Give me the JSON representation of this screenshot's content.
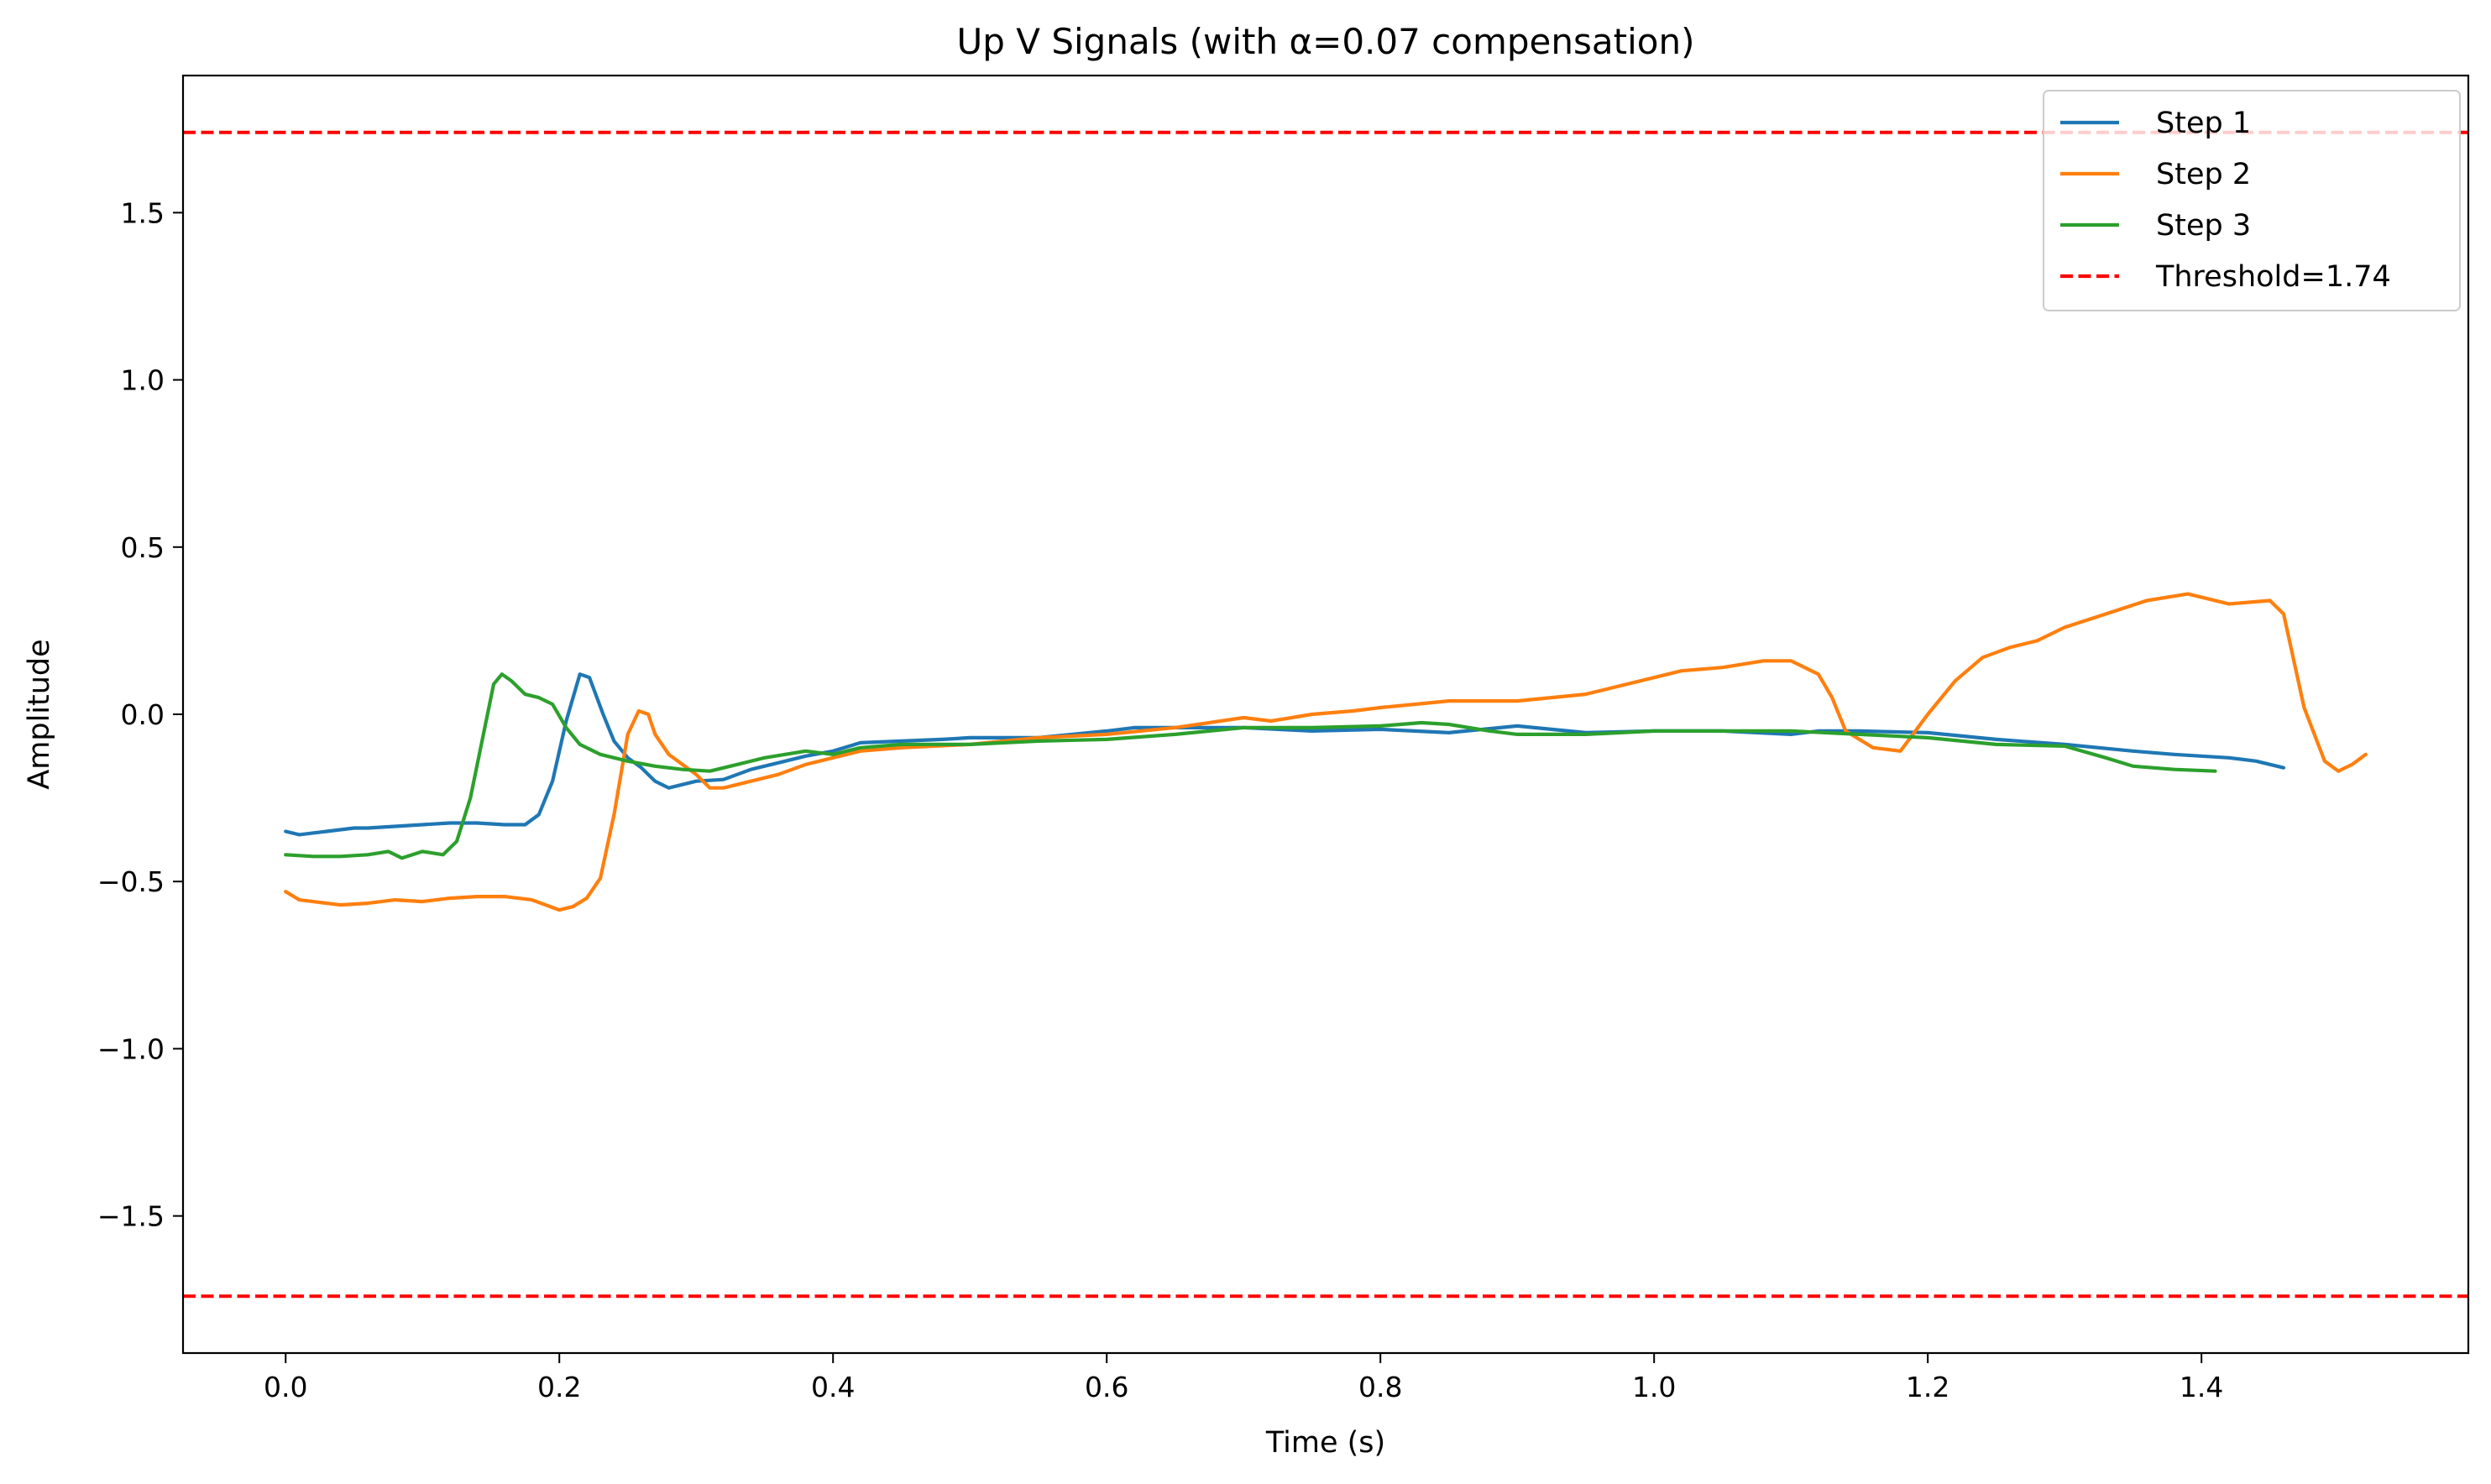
{
  "chart_data": {
    "type": "line",
    "title": "Up V Signals (with α=0.07 compensation)",
    "xlabel": "Time (s)",
    "ylabel": "Amplitude",
    "xlim": [
      -0.075,
      1.595
    ],
    "ylim": [
      -1.91,
      1.91
    ],
    "xticks": [
      0.0,
      0.2,
      0.4,
      0.6,
      0.8,
      1.0,
      1.2,
      1.4
    ],
    "xtick_labels": [
      "0.0",
      "0.2",
      "0.4",
      "0.6",
      "0.8",
      "1.0",
      "1.2",
      "1.4"
    ],
    "yticks": [
      -1.5,
      -1.0,
      -0.5,
      0.0,
      0.5,
      1.0,
      1.5
    ],
    "ytick_labels": [
      "−1.5",
      "−1.0",
      "−0.5",
      "0.0",
      "0.5",
      "1.0",
      "1.5"
    ],
    "grid": false,
    "legend_position": "top-right",
    "series": [
      {
        "name": "Step 1",
        "color": "#1f77b4",
        "points": [
          [
            0.0,
            -0.35
          ],
          [
            0.01,
            -0.36
          ],
          [
            0.02,
            -0.355
          ],
          [
            0.03,
            -0.35
          ],
          [
            0.04,
            -0.345
          ],
          [
            0.05,
            -0.34
          ],
          [
            0.06,
            -0.34
          ],
          [
            0.08,
            -0.335
          ],
          [
            0.1,
            -0.33
          ],
          [
            0.12,
            -0.325
          ],
          [
            0.14,
            -0.325
          ],
          [
            0.16,
            -0.33
          ],
          [
            0.175,
            -0.33
          ],
          [
            0.185,
            -0.3
          ],
          [
            0.195,
            -0.2
          ],
          [
            0.205,
            -0.02
          ],
          [
            0.215,
            0.12
          ],
          [
            0.222,
            0.11
          ],
          [
            0.232,
            0.0
          ],
          [
            0.24,
            -0.08
          ],
          [
            0.25,
            -0.13
          ],
          [
            0.26,
            -0.16
          ],
          [
            0.27,
            -0.2
          ],
          [
            0.28,
            -0.22
          ],
          [
            0.3,
            -0.2
          ],
          [
            0.32,
            -0.195
          ],
          [
            0.34,
            -0.165
          ],
          [
            0.36,
            -0.145
          ],
          [
            0.38,
            -0.125
          ],
          [
            0.4,
            -0.11
          ],
          [
            0.42,
            -0.085
          ],
          [
            0.45,
            -0.08
          ],
          [
            0.48,
            -0.075
          ],
          [
            0.5,
            -0.07
          ],
          [
            0.55,
            -0.07
          ],
          [
            0.6,
            -0.05
          ],
          [
            0.62,
            -0.04
          ],
          [
            0.65,
            -0.04
          ],
          [
            0.7,
            -0.04
          ],
          [
            0.75,
            -0.05
          ],
          [
            0.8,
            -0.045
          ],
          [
            0.85,
            -0.055
          ],
          [
            0.9,
            -0.035
          ],
          [
            0.95,
            -0.055
          ],
          [
            1.0,
            -0.05
          ],
          [
            1.05,
            -0.05
          ],
          [
            1.1,
            -0.06
          ],
          [
            1.12,
            -0.05
          ],
          [
            1.15,
            -0.05
          ],
          [
            1.2,
            -0.055
          ],
          [
            1.25,
            -0.075
          ],
          [
            1.3,
            -0.09
          ],
          [
            1.35,
            -0.11
          ],
          [
            1.38,
            -0.12
          ],
          [
            1.4,
            -0.125
          ],
          [
            1.42,
            -0.13
          ],
          [
            1.44,
            -0.14
          ],
          [
            1.46,
            -0.16
          ]
        ]
      },
      {
        "name": "Step 2",
        "color": "#ff7f0e",
        "points": [
          [
            0.0,
            -0.53
          ],
          [
            0.01,
            -0.555
          ],
          [
            0.02,
            -0.56
          ],
          [
            0.04,
            -0.57
          ],
          [
            0.06,
            -0.565
          ],
          [
            0.08,
            -0.555
          ],
          [
            0.1,
            -0.56
          ],
          [
            0.12,
            -0.55
          ],
          [
            0.14,
            -0.545
          ],
          [
            0.16,
            -0.545
          ],
          [
            0.18,
            -0.555
          ],
          [
            0.2,
            -0.585
          ],
          [
            0.21,
            -0.575
          ],
          [
            0.22,
            -0.55
          ],
          [
            0.23,
            -0.49
          ],
          [
            0.24,
            -0.3
          ],
          [
            0.25,
            -0.06
          ],
          [
            0.258,
            0.01
          ],
          [
            0.265,
            0.0
          ],
          [
            0.27,
            -0.06
          ],
          [
            0.28,
            -0.12
          ],
          [
            0.29,
            -0.15
          ],
          [
            0.3,
            -0.18
          ],
          [
            0.31,
            -0.22
          ],
          [
            0.32,
            -0.22
          ],
          [
            0.34,
            -0.2
          ],
          [
            0.36,
            -0.18
          ],
          [
            0.38,
            -0.15
          ],
          [
            0.4,
            -0.13
          ],
          [
            0.42,
            -0.11
          ],
          [
            0.45,
            -0.1
          ],
          [
            0.5,
            -0.09
          ],
          [
            0.55,
            -0.07
          ],
          [
            0.6,
            -0.06
          ],
          [
            0.65,
            -0.04
          ],
          [
            0.7,
            -0.01
          ],
          [
            0.72,
            -0.02
          ],
          [
            0.75,
            0.0
          ],
          [
            0.78,
            0.01
          ],
          [
            0.8,
            0.02
          ],
          [
            0.85,
            0.04
          ],
          [
            0.9,
            0.04
          ],
          [
            0.95,
            0.06
          ],
          [
            1.0,
            0.11
          ],
          [
            1.02,
            0.13
          ],
          [
            1.05,
            0.14
          ],
          [
            1.08,
            0.16
          ],
          [
            1.1,
            0.16
          ],
          [
            1.12,
            0.12
          ],
          [
            1.13,
            0.05
          ],
          [
            1.14,
            -0.05
          ],
          [
            1.16,
            -0.1
          ],
          [
            1.18,
            -0.11
          ],
          [
            1.2,
            0.0
          ],
          [
            1.22,
            0.1
          ],
          [
            1.24,
            0.17
          ],
          [
            1.26,
            0.2
          ],
          [
            1.28,
            0.22
          ],
          [
            1.3,
            0.26
          ],
          [
            1.33,
            0.3
          ],
          [
            1.36,
            0.34
          ],
          [
            1.39,
            0.36
          ],
          [
            1.42,
            0.33
          ],
          [
            1.45,
            0.34
          ],
          [
            1.46,
            0.3
          ],
          [
            1.475,
            0.02
          ],
          [
            1.49,
            -0.14
          ],
          [
            1.5,
            -0.17
          ],
          [
            1.51,
            -0.15
          ],
          [
            1.52,
            -0.12
          ]
        ]
      },
      {
        "name": "Step 3",
        "color": "#2ca02c",
        "points": [
          [
            0.0,
            -0.42
          ],
          [
            0.02,
            -0.425
          ],
          [
            0.04,
            -0.425
          ],
          [
            0.06,
            -0.42
          ],
          [
            0.075,
            -0.41
          ],
          [
            0.085,
            -0.43
          ],
          [
            0.1,
            -0.41
          ],
          [
            0.115,
            -0.42
          ],
          [
            0.125,
            -0.38
          ],
          [
            0.135,
            -0.25
          ],
          [
            0.145,
            -0.05
          ],
          [
            0.152,
            0.09
          ],
          [
            0.158,
            0.12
          ],
          [
            0.165,
            0.1
          ],
          [
            0.175,
            0.06
          ],
          [
            0.185,
            0.05
          ],
          [
            0.195,
            0.03
          ],
          [
            0.205,
            -0.04
          ],
          [
            0.215,
            -0.09
          ],
          [
            0.23,
            -0.12
          ],
          [
            0.25,
            -0.14
          ],
          [
            0.27,
            -0.155
          ],
          [
            0.29,
            -0.165
          ],
          [
            0.31,
            -0.17
          ],
          [
            0.33,
            -0.15
          ],
          [
            0.35,
            -0.13
          ],
          [
            0.38,
            -0.11
          ],
          [
            0.4,
            -0.12
          ],
          [
            0.42,
            -0.1
          ],
          [
            0.45,
            -0.09
          ],
          [
            0.5,
            -0.09
          ],
          [
            0.55,
            -0.08
          ],
          [
            0.6,
            -0.075
          ],
          [
            0.65,
            -0.06
          ],
          [
            0.7,
            -0.04
          ],
          [
            0.75,
            -0.04
          ],
          [
            0.8,
            -0.035
          ],
          [
            0.83,
            -0.025
          ],
          [
            0.85,
            -0.03
          ],
          [
            0.88,
            -0.05
          ],
          [
            0.9,
            -0.06
          ],
          [
            0.95,
            -0.06
          ],
          [
            1.0,
            -0.05
          ],
          [
            1.05,
            -0.05
          ],
          [
            1.1,
            -0.05
          ],
          [
            1.15,
            -0.06
          ],
          [
            1.2,
            -0.07
          ],
          [
            1.25,
            -0.09
          ],
          [
            1.3,
            -0.095
          ],
          [
            1.33,
            -0.13
          ],
          [
            1.35,
            -0.155
          ],
          [
            1.38,
            -0.165
          ],
          [
            1.41,
            -0.17
          ]
        ]
      }
    ],
    "thresholds": {
      "name": "Threshold=1.74",
      "color": "#ff0000",
      "values": [
        1.74,
        -1.74
      ],
      "style": "dashed"
    }
  }
}
